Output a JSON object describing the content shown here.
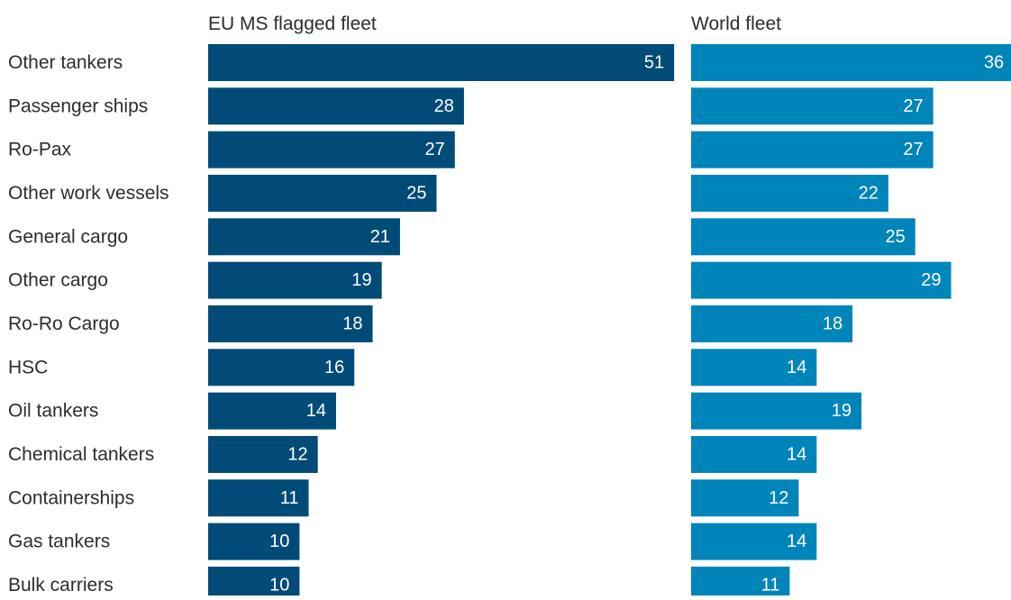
{
  "chart_data": {
    "type": "bar",
    "orientation": "horizontal",
    "categories": [
      "Other tankers",
      "Passenger ships",
      "Ro-Pax",
      "Other work vessels",
      "General cargo",
      "Other cargo",
      "Ro-Ro Cargo",
      "HSC",
      "Oil tankers",
      "Chemical tankers",
      "Containerships",
      "Gas tankers",
      "Bulk carriers"
    ],
    "series": [
      {
        "name": "EU MS flagged fleet",
        "color": "#004b78",
        "values": [
          51,
          28,
          27,
          25,
          21,
          19,
          18,
          16,
          14,
          12,
          11,
          10,
          10
        ]
      },
      {
        "name": "World fleet",
        "color": "#0085bb",
        "values": [
          36,
          27,
          27,
          22,
          25,
          29,
          18,
          14,
          19,
          14,
          12,
          14,
          11
        ]
      }
    ],
    "value_labels": "inside-end",
    "grid": false,
    "legend": "panel titles above each panel"
  }
}
